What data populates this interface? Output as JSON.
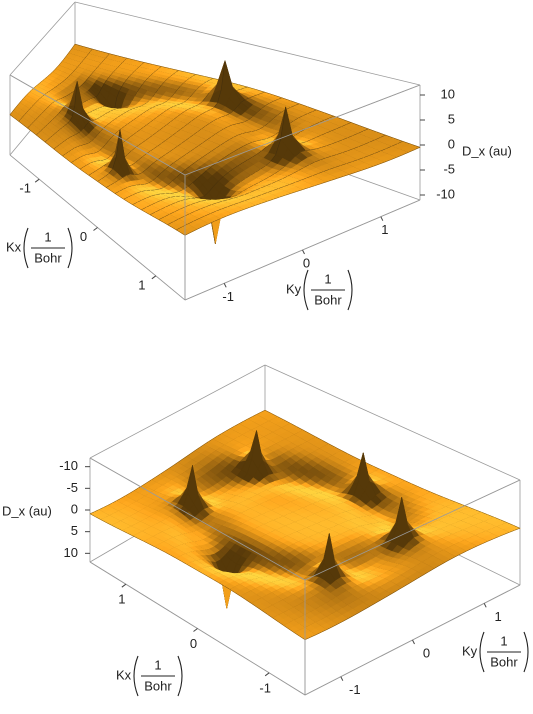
{
  "chart_data": [
    {
      "type": "surface",
      "x_label": "Kx",
      "y_label": "Ky",
      "z_label": "D_x (au)",
      "unit_numerator": "1",
      "unit_denominator": "Bohr",
      "xlim": [
        -1.5,
        1.5
      ],
      "ylim": [
        -1.5,
        1.5
      ],
      "zlim": [
        -11,
        12
      ],
      "xticks": [
        -1,
        0,
        1
      ],
      "yticks": [
        -1,
        0,
        1
      ],
      "zticks": [
        10,
        5,
        0,
        -5,
        -10
      ],
      "color": "#f7a21b"
    },
    {
      "type": "surface",
      "x_label": "Kx",
      "y_label": "Ky",
      "z_label": "D_x (au)",
      "unit_numerator": "1",
      "unit_denominator": "Bohr",
      "xlim": [
        -1.5,
        1.5
      ],
      "ylim": [
        -1.5,
        1.5
      ],
      "zlim": [
        -12,
        12
      ],
      "xticks": [
        -1,
        0,
        1
      ],
      "yticks": [
        -1,
        0,
        1
      ],
      "zticks": [
        -10,
        -5,
        0,
        5,
        10
      ],
      "color": "#f7a21b"
    }
  ]
}
